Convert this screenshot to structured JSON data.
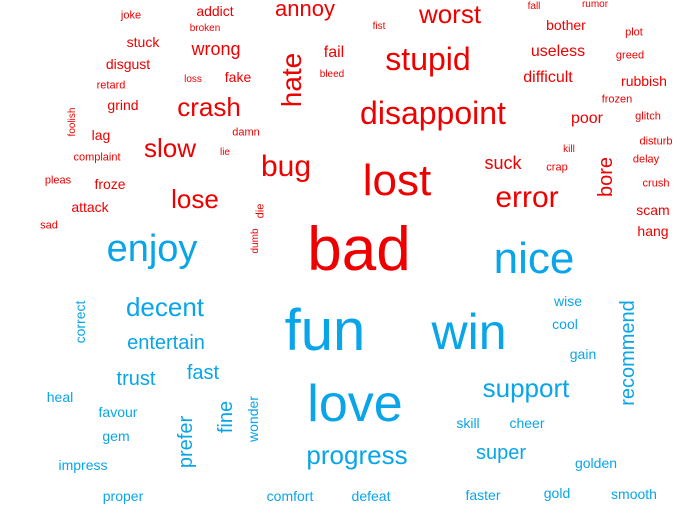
{
  "colors": {
    "negative": "#ee0000",
    "positive": "#0aa5e8"
  },
  "negative_words": [
    "joke",
    "addict",
    "annoy",
    "worst",
    "fall",
    "rumor",
    "fist",
    "bother",
    "plot",
    "broken",
    "stuck",
    "wrong",
    "fail",
    "hate",
    "stupid",
    "useless",
    "greed",
    "disgust",
    "retard",
    "loss",
    "fake",
    "bleed",
    "difficult",
    "rubbish",
    "grind",
    "crash",
    "disappoint",
    "frozen",
    "foolish",
    "lag",
    "poor",
    "glitch",
    "damn",
    "slow",
    "lie",
    "kill",
    "disturb",
    "complaint",
    "bug",
    "suck",
    "lost",
    "crap",
    "bore",
    "delay",
    "pleas",
    "froze",
    "lose",
    "error",
    "crush",
    "attack",
    "die",
    "scam",
    "sad",
    "dumb",
    "hang",
    "bad"
  ],
  "positive_words": [
    "enjoy",
    "nice",
    "decent",
    "fun",
    "win",
    "wise",
    "correct",
    "recommend",
    "cool",
    "entertain",
    "gain",
    "fast",
    "trust",
    "support",
    "heal",
    "love",
    "favour",
    "fine",
    "skill",
    "cheer",
    "wonder",
    "gem",
    "prefer",
    "progress",
    "super",
    "impress",
    "golden",
    "proper",
    "comfort",
    "defeat",
    "faster",
    "gold",
    "smooth"
  ]
}
